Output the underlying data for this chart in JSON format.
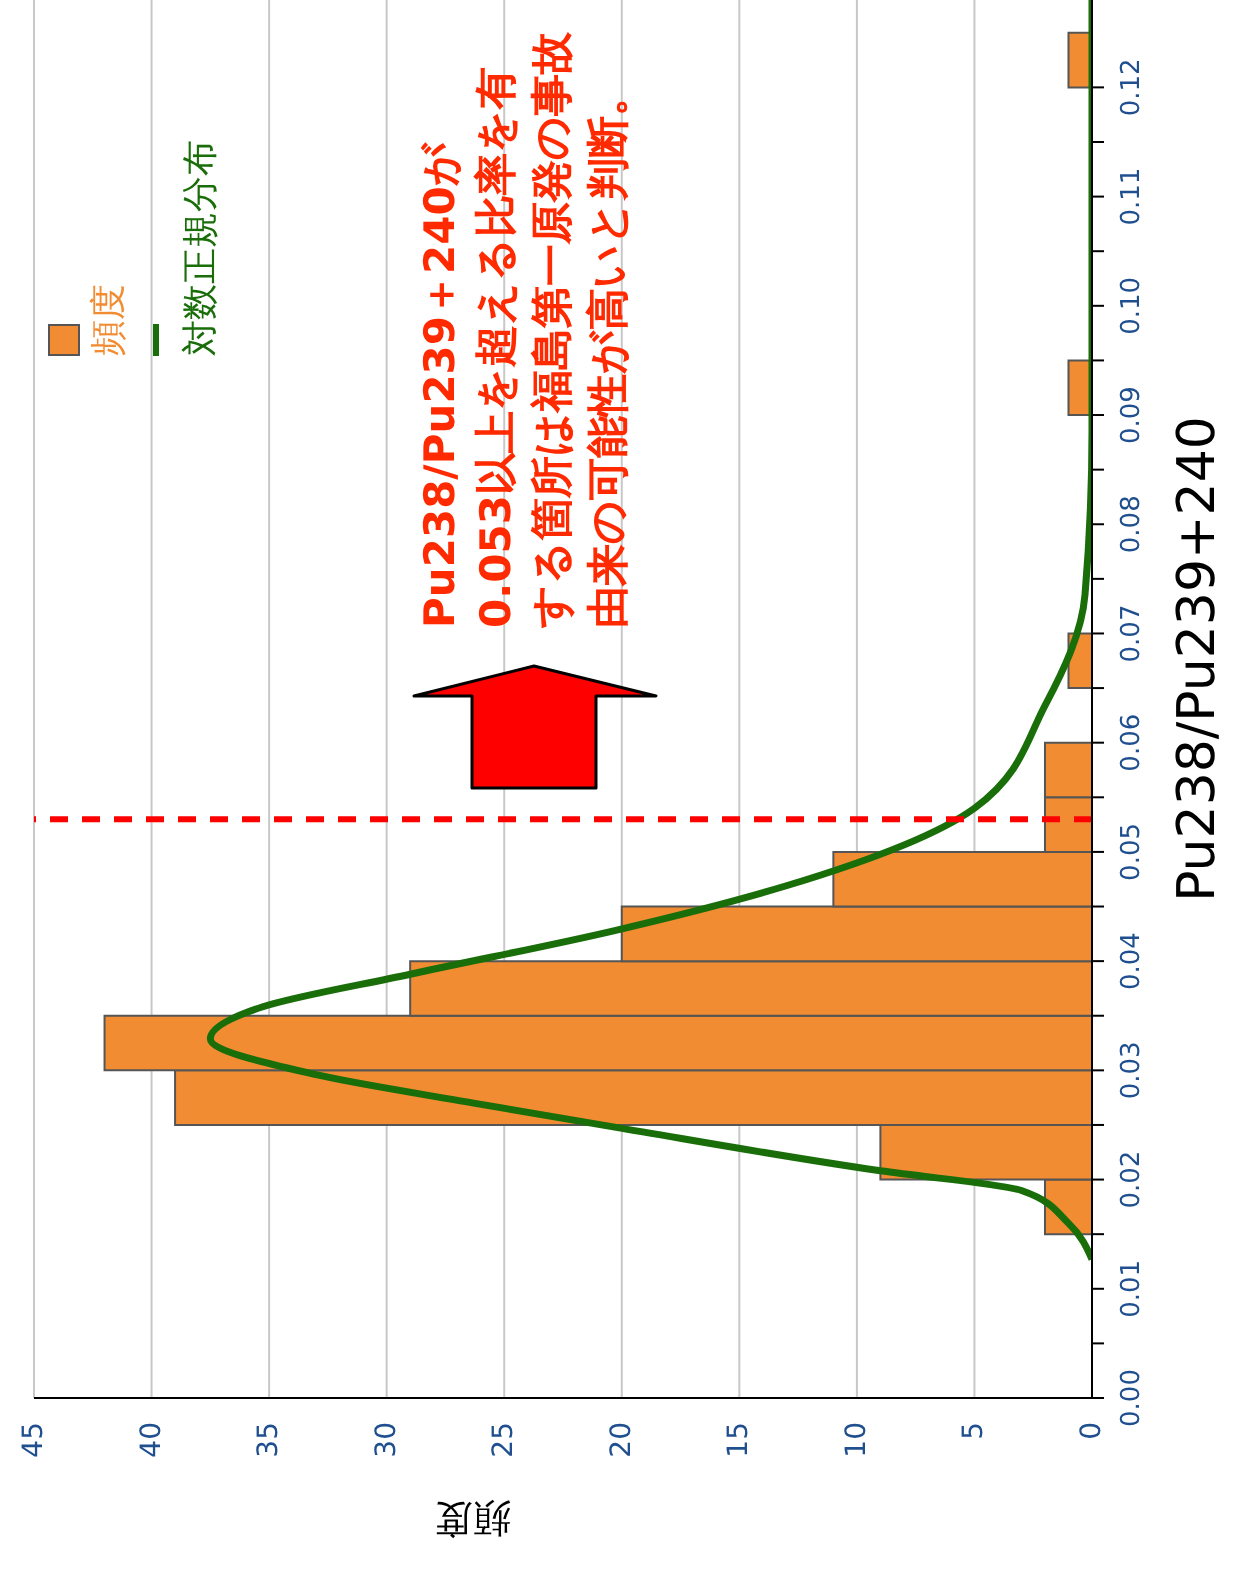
{
  "chart_data": {
    "type": "histogram",
    "orientation": "horizontal",
    "xlabel": "頻度",
    "ylabel": "Pu238/Pu239+240",
    "bins": [
      0.015,
      0.02,
      0.025,
      0.03,
      0.035,
      0.04,
      0.045,
      0.05,
      0.055,
      0.06,
      0.065,
      0.07,
      0.075,
      0.08,
      0.085,
      0.09,
      0.095,
      0.1,
      0.105,
      0.11,
      0.115,
      0.12,
      0.125
    ],
    "series": [
      {
        "name": "頻度",
        "color": "#f28c33",
        "values": [
          2,
          9,
          39,
          42,
          29,
          20,
          11,
          2,
          2,
          0,
          1,
          0,
          0,
          0,
          0,
          1,
          0,
          0,
          0,
          0,
          0,
          1
        ]
      },
      {
        "type": "line",
        "name": "対数正規分布",
        "color": "#1a6e0a",
        "x": [
          0.0127,
          0.016,
          0.019,
          0.0208,
          0.0248,
          0.027,
          0.0296,
          0.0329,
          0.0358,
          0.0388,
          0.0428,
          0.0469,
          0.054,
          0.0634,
          0.0735,
          0.0886,
          0.128
        ],
        "values": [
          0,
          1,
          3,
          9,
          20.3,
          26.3,
          33,
          37.5,
          35.3,
          29,
          20.3,
          13,
          5,
          2,
          0.3,
          0,
          0
        ]
      }
    ],
    "xlim": [
      45,
      0
    ],
    "xticks": [
      0,
      5,
      10,
      15,
      20,
      25,
      30,
      35,
      40,
      45
    ],
    "ylim": [
      0,
      0.128
    ],
    "yticks": [
      {
        "value": 0,
        "label": "0.00"
      },
      {
        "value": 0.005,
        "label": null
      },
      {
        "value": 0.01,
        "label": "0.01"
      },
      {
        "value": 0.015,
        "label": null
      },
      {
        "value": 0.02,
        "label": "0.02"
      },
      {
        "value": 0.025,
        "label": null
      },
      {
        "value": 0.03,
        "label": "0.03"
      },
      {
        "value": 0.035,
        "label": null
      },
      {
        "value": 0.04,
        "label": "0.04"
      },
      {
        "value": 0.045,
        "label": null
      },
      {
        "value": 0.05,
        "label": "0.05"
      },
      {
        "value": 0.055,
        "label": null
      },
      {
        "value": 0.06,
        "label": "0.06"
      },
      {
        "value": 0.065,
        "label": null
      },
      {
        "value": 0.07,
        "label": "0.07"
      },
      {
        "value": 0.075,
        "label": null
      },
      {
        "value": 0.08,
        "label": "0.08"
      },
      {
        "value": 0.085,
        "label": null
      },
      {
        "value": 0.09,
        "label": "0.09"
      },
      {
        "value": 0.095,
        "label": null
      },
      {
        "value": 0.1,
        "label": "0.10"
      },
      {
        "value": 0.105,
        "label": null
      },
      {
        "value": 0.11,
        "label": "0.11"
      },
      {
        "value": 0.115,
        "label": null
      },
      {
        "value": 0.12,
        "label": "0.12"
      }
    ],
    "grid": "x",
    "legend": "top left",
    "ref_lines": [
      {
        "axis": "y",
        "value": 0.053,
        "color": "#ff0000",
        "line_style": "dashed"
      }
    ],
    "annotations": [
      "Pu238/Pu239＋240が0.053以上を超える比率を有する箇所は福島第一原発の事故由来の可能性が高いと判断。"
    ]
  }
}
